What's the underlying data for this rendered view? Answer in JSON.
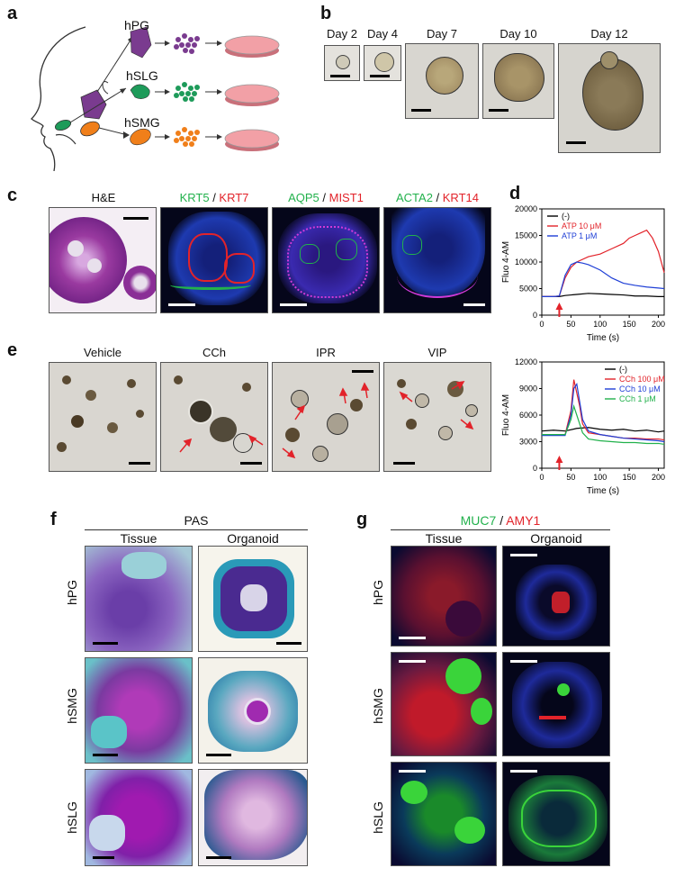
{
  "panel_a": {
    "letter": "a",
    "glands": [
      {
        "name": "hPG",
        "color": "#7a3b8f"
      },
      {
        "name": "hSLG",
        "color": "#1e9b5a"
      },
      {
        "name": "hSMG",
        "color": "#f07f1a"
      }
    ],
    "dish_color": "#f2a0a6"
  },
  "panel_b": {
    "letter": "b",
    "days": [
      "Day 2",
      "Day 4",
      "Day 7",
      "Day 10",
      "Day 12"
    ]
  },
  "panel_c": {
    "letter": "c",
    "he_label": "H&E",
    "stains": [
      {
        "green": "KRT5",
        "sep": " / ",
        "red": "KRT7"
      },
      {
        "green": "AQP5",
        "sep": " / ",
        "red": "MIST1"
      },
      {
        "green": "ACTA2",
        "sep": " / ",
        "red": "KRT14"
      }
    ]
  },
  "panel_d": {
    "letter": "d",
    "ylabel": "Fluo 4-AM",
    "xlabel": "Time (s)"
  },
  "panel_e": {
    "letter": "e",
    "conditions": [
      "Vehicle",
      "CCh",
      "IPR",
      "VIP"
    ]
  },
  "panel_f": {
    "letter": "f",
    "title": "PAS",
    "cols": [
      "Tissue",
      "Organoid"
    ],
    "rows": [
      "hPG",
      "hSMG",
      "hSLG"
    ]
  },
  "panel_g": {
    "letter": "g",
    "title_green": "MUC7",
    "title_sep": " / ",
    "title_red": "AMY1",
    "cols": [
      "Tissue",
      "Organoid"
    ],
    "rows": [
      "hPG",
      "hSMG",
      "hSLG"
    ]
  },
  "chart_data": [
    {
      "type": "line",
      "title": "",
      "xlabel": "Time (s)",
      "ylabel": "Fluo 4-AM",
      "xlim": [
        0,
        210
      ],
      "ylim": [
        0,
        20000
      ],
      "xticks": [
        0,
        50,
        100,
        150,
        200
      ],
      "yticks": [
        0,
        5000,
        10000,
        15000,
        20000
      ],
      "legend": "top-left",
      "stimulus_arrow_x": 30,
      "series": [
        {
          "name": "(-)",
          "color": "#000000",
          "x": [
            0,
            20,
            30,
            40,
            60,
            80,
            100,
            120,
            140,
            160,
            180,
            200,
            210
          ],
          "y": [
            3500,
            3500,
            3500,
            3700,
            3900,
            4100,
            4000,
            3900,
            3800,
            3600,
            3600,
            3500,
            3500
          ]
        },
        {
          "name": "ATP 10 μM",
          "color": "#e2232a",
          "x": [
            0,
            20,
            30,
            40,
            50,
            60,
            80,
            100,
            120,
            140,
            150,
            160,
            170,
            180,
            190,
            200,
            210
          ],
          "y": [
            3500,
            3500,
            3600,
            7000,
            9000,
            10000,
            11000,
            11500,
            12500,
            13500,
            14500,
            15000,
            15500,
            16000,
            14500,
            12000,
            8000
          ]
        },
        {
          "name": "ATP 1 μM",
          "color": "#1f3fd6",
          "x": [
            0,
            20,
            30,
            40,
            50,
            60,
            70,
            80,
            100,
            120,
            140,
            160,
            180,
            200,
            210
          ],
          "y": [
            3500,
            3500,
            3600,
            7500,
            9500,
            10000,
            9800,
            9500,
            8500,
            7000,
            6000,
            5600,
            5300,
            5100,
            5000
          ]
        }
      ]
    },
    {
      "type": "line",
      "title": "",
      "xlabel": "Time (s)",
      "ylabel": "Fluo 4-AM",
      "xlim": [
        0,
        210
      ],
      "ylim": [
        0,
        12000
      ],
      "xticks": [
        0,
        50,
        100,
        150,
        200
      ],
      "yticks": [
        0,
        3000,
        6000,
        9000,
        12000
      ],
      "legend": "top-right",
      "stimulus_arrow_x": 30,
      "series": [
        {
          "name": "(-)",
          "color": "#000000",
          "x": [
            0,
            20,
            40,
            60,
            80,
            100,
            120,
            140,
            160,
            180,
            200,
            210
          ],
          "y": [
            4200,
            4300,
            4200,
            4500,
            4600,
            4400,
            4300,
            4400,
            4200,
            4300,
            4100,
            4200
          ]
        },
        {
          "name": "CCh 100 μM",
          "color": "#e2232a",
          "x": [
            0,
            20,
            40,
            50,
            55,
            60,
            65,
            70,
            80,
            100,
            120,
            140,
            160,
            180,
            200,
            210
          ],
          "y": [
            3800,
            3800,
            3800,
            6500,
            10000,
            8500,
            7000,
            5000,
            4000,
            3800,
            3600,
            3400,
            3400,
            3300,
            3300,
            3200
          ]
        },
        {
          "name": "CCh 10 μM",
          "color": "#1f3fd6",
          "x": [
            0,
            20,
            40,
            50,
            55,
            60,
            65,
            70,
            80,
            100,
            120,
            140,
            160,
            180,
            200,
            210
          ],
          "y": [
            3700,
            3700,
            3700,
            6000,
            9000,
            9500,
            7500,
            5500,
            4200,
            3800,
            3600,
            3400,
            3300,
            3200,
            3100,
            3000
          ]
        },
        {
          "name": "CCh 1 μM",
          "color": "#22b14c",
          "x": [
            0,
            20,
            40,
            50,
            55,
            60,
            70,
            80,
            100,
            120,
            140,
            160,
            180,
            200,
            210
          ],
          "y": [
            3800,
            3800,
            3800,
            5500,
            7000,
            6000,
            4000,
            3300,
            3100,
            3000,
            2900,
            2900,
            2800,
            2800,
            2700
          ]
        }
      ]
    }
  ]
}
